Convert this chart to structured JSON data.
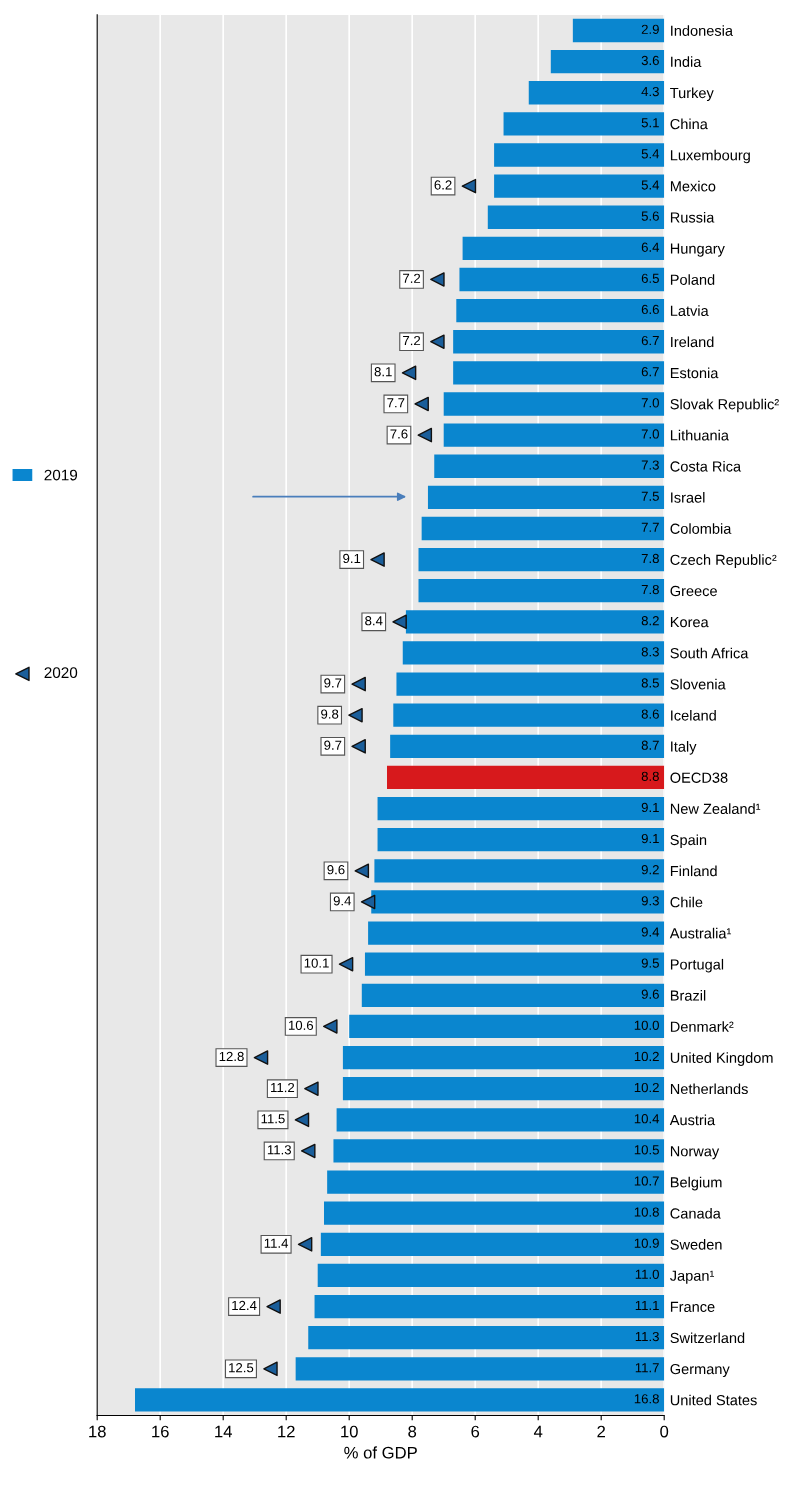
{
  "chart_data": {
    "type": "bar",
    "orientation": "horizontal",
    "xlabel": "% of GDP",
    "categories": [
      "Indonesia",
      "India",
      "Turkey",
      "China",
      "Luxembourg",
      "Mexico",
      "Russia",
      "Hungary",
      "Poland",
      "Latvia",
      "Ireland",
      "Estonia",
      "Slovak Republic²",
      "Lithuania",
      "Costa Rica",
      "Israel",
      "Colombia",
      "Czech Republic²",
      "Greece",
      "Korea",
      "South Africa",
      "Slovenia",
      "Iceland",
      "Italy",
      "OECD38",
      "New Zealand¹",
      "Spain",
      "Finland",
      "Chile",
      "Australia¹",
      "Portugal",
      "Brazil",
      "Denmark²",
      "United Kingdom",
      "Netherlands",
      "Austria",
      "Norway",
      "Belgium",
      "Canada",
      "Sweden",
      "Japan¹",
      "France",
      "Switzerland",
      "Germany",
      "United States"
    ],
    "series": [
      {
        "name": "2019",
        "color": "#0a86cf",
        "colors": [
          "#0a86cf",
          "#0a86cf",
          "#0a86cf",
          "#0a86cf",
          "#0a86cf",
          "#0a86cf",
          "#0a86cf",
          "#0a86cf",
          "#0a86cf",
          "#0a86cf",
          "#0a86cf",
          "#0a86cf",
          "#0a86cf",
          "#0a86cf",
          "#0a86cf",
          "#0a86cf",
          "#0a86cf",
          "#0a86cf",
          "#0a86cf",
          "#0a86cf",
          "#0a86cf",
          "#0a86cf",
          "#0a86cf",
          "#0a86cf",
          "#d7191c",
          "#0a86cf",
          "#0a86cf",
          "#0a86cf",
          "#0a86cf",
          "#0a86cf",
          "#0a86cf",
          "#0a86cf",
          "#0a86cf",
          "#0a86cf",
          "#0a86cf",
          "#0a86cf",
          "#0a86cf",
          "#0a86cf",
          "#0a86cf",
          "#0a86cf",
          "#0a86cf",
          "#0a86cf",
          "#0a86cf",
          "#0a86cf",
          "#0a86cf"
        ],
        "values": [
          2.9,
          3.6,
          4.3,
          5.1,
          5.4,
          5.4,
          5.6,
          6.4,
          6.5,
          6.6,
          6.7,
          6.7,
          7.0,
          7.0,
          7.3,
          7.5,
          7.7,
          7.8,
          7.8,
          8.2,
          8.3,
          8.5,
          8.6,
          8.7,
          8.8,
          9.1,
          9.1,
          9.2,
          9.3,
          9.4,
          9.5,
          9.6,
          10.0,
          10.2,
          10.2,
          10.4,
          10.5,
          10.7,
          10.8,
          10.9,
          11.0,
          11.1,
          11.3,
          11.7,
          16.8
        ],
        "value_labels": [
          "2.9",
          "3.6",
          "4.3",
          "5.1",
          "5.4",
          "5.4",
          "5.6",
          "6.4",
          "6.5",
          "6.6",
          "6.7",
          "6.7",
          "7.0",
          "7.0",
          "7.3",
          "7.5",
          "7.7",
          "7.8",
          "7.8",
          "8.2",
          "8.3",
          "8.5",
          "8.6",
          "8.7",
          "8.8",
          "9.1",
          "9.1",
          "9.2",
          "9.3",
          "9.4",
          "9.5",
          "9.6",
          "10.0",
          "10.2",
          "10.2",
          "10.4",
          "10.5",
          "10.7",
          "10.8",
          "10.9",
          "11.0",
          "11.1",
          "11.3",
          "11.7",
          "16.8"
        ]
      },
      {
        "name": "2020",
        "type": "scatter",
        "color": "#1a5e9a",
        "marker": "triangle",
        "values": [
          null,
          null,
          null,
          null,
          null,
          6.2,
          null,
          null,
          7.2,
          null,
          7.2,
          8.1,
          7.7,
          7.6,
          null,
          null,
          null,
          9.1,
          null,
          8.4,
          null,
          9.7,
          9.8,
          9.7,
          null,
          null,
          null,
          9.6,
          9.4,
          null,
          10.1,
          null,
          10.6,
          12.8,
          11.2,
          11.5,
          11.3,
          null,
          null,
          11.4,
          null,
          12.4,
          null,
          12.5,
          null
        ],
        "value_labels": [
          null,
          null,
          null,
          null,
          null,
          "6.2",
          null,
          null,
          "7.2",
          null,
          "7.2",
          "8.1",
          "7.7",
          "7.6",
          null,
          null,
          null,
          "9.1",
          null,
          "8.4",
          null,
          "9.7",
          "9.8",
          "9.7",
          null,
          null,
          null,
          "9.6",
          "9.4",
          null,
          "10.1",
          null,
          "10.6",
          "12.8",
          "11.2",
          "11.5",
          "11.3",
          null,
          null,
          "11.4",
          null,
          "12.4",
          null,
          "12.5",
          null
        ]
      }
    ],
    "xlim": [
      18,
      0
    ],
    "xticks": [
      18,
      16,
      14,
      12,
      10,
      8,
      6,
      4,
      2,
      0
    ],
    "grid": "x",
    "legend": "left"
  }
}
